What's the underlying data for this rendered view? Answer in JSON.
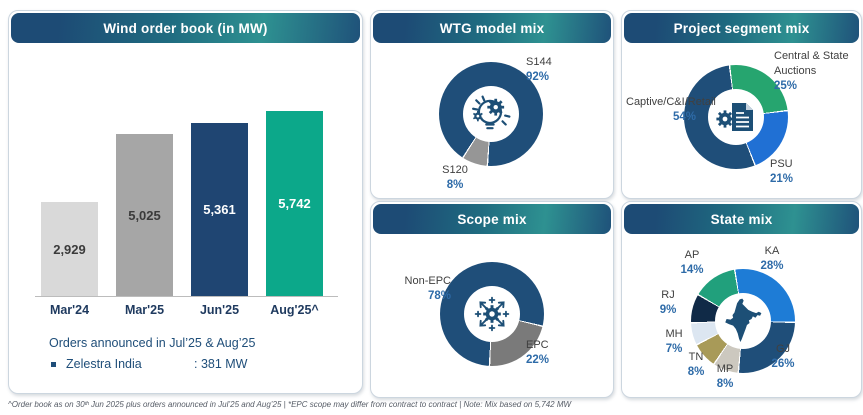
{
  "panels": {
    "wind_order_book": {
      "orders_heading": "Orders announced in Jul’25 & Aug’25",
      "orders_items": [
        {
          "name": "Zelestra India",
          "value": ": 381 MW"
        }
      ]
    }
  },
  "chart_data": [
    {
      "id": "wind_order_book",
      "type": "bar",
      "title": "Wind order book (in MW)",
      "categories": [
        "Mar'24",
        "Mar'25",
        "Jun'25",
        "Aug'25^"
      ],
      "values": [
        2929,
        5025,
        5361,
        5742
      ],
      "value_labels": [
        "2,929",
        "5,025",
        "5,361",
        "5,742"
      ],
      "bar_colors": [
        "#D9D9D9",
        "#A6A6A6",
        "#1F4572",
        "#0CA88A"
      ],
      "label_colors": [
        "#3B3B3B",
        "#3B3B3B",
        "#FFFFFF",
        "#FFFFFF"
      ],
      "xlabel": "",
      "ylabel": "MW",
      "ylim": [
        0,
        5742
      ],
      "grid": false
    },
    {
      "id": "wtg_model_mix",
      "type": "donut",
      "title": "WTG model mix",
      "center_icon": "innovation-bulb-gear-icon",
      "segments": [
        {
          "label": "S144",
          "pct": 92,
          "pct_label": "92%",
          "color": "#1F4E79"
        },
        {
          "label": "S120",
          "pct": 8,
          "pct_label": "8%",
          "color": "#969696"
        }
      ]
    },
    {
      "id": "project_segment_mix",
      "type": "donut",
      "title": "Project segment mix",
      "center_icon": "gear-document-icon",
      "segments": [
        {
          "label": "Central & State Auctions",
          "pct": 25,
          "pct_label": "25%",
          "color": "#26A56F"
        },
        {
          "label": "PSU",
          "pct": 21,
          "pct_label": "21%",
          "color": "#2070D4"
        },
        {
          "label": "Captive/C&I/Retail",
          "pct": 54,
          "pct_label": "54%",
          "color": "#1F4E79"
        }
      ]
    },
    {
      "id": "scope_mix",
      "type": "donut",
      "title": "Scope mix",
      "center_icon": "gear-radiating-arrows-icon",
      "segments": [
        {
          "label": "Non-EPC",
          "pct": 78,
          "pct_label": "78%",
          "color": "#1F4E79"
        },
        {
          "label": "EPC",
          "pct": 22,
          "pct_label": "22%",
          "color": "#7A7A7A"
        }
      ]
    },
    {
      "id": "state_mix",
      "type": "donut",
      "title": "State mix",
      "center_icon": "india-map-icon",
      "segments": [
        {
          "label": "KA",
          "pct": 28,
          "pct_label": "28%",
          "color": "#1E7CD6"
        },
        {
          "label": "GJ",
          "pct": 26,
          "pct_label": "26%",
          "color": "#1F4E79"
        },
        {
          "label": "MP",
          "pct": 8,
          "pct_label": "8%",
          "color": "#CCC8BF"
        },
        {
          "label": "TN",
          "pct": 8,
          "pct_label": "8%",
          "color": "#A89A58"
        },
        {
          "label": "MH",
          "pct": 7,
          "pct_label": "7%",
          "color": "#DCE6F1"
        },
        {
          "label": "RJ",
          "pct": 9,
          "pct_label": "9%",
          "color": "#102A47"
        },
        {
          "label": "AP",
          "pct": 14,
          "pct_label": "14%",
          "color": "#21A07C"
        }
      ]
    }
  ],
  "footnote": "^Order book as on 30ᵗʰ Jun 2025 plus orders announced in Jul’25 and Aug’25  |  *EPC scope may differ from contract to contract | Note: Mix based on 5,742 MW",
  "colors": {
    "header_gradient_left": "#1D4B75",
    "header_gradient_mid": "#2E9191",
    "navy": "#1F4E79",
    "teal": "#0CA88A",
    "pct_text_blue": "#2E6BA8",
    "label_gray": "#404040"
  }
}
